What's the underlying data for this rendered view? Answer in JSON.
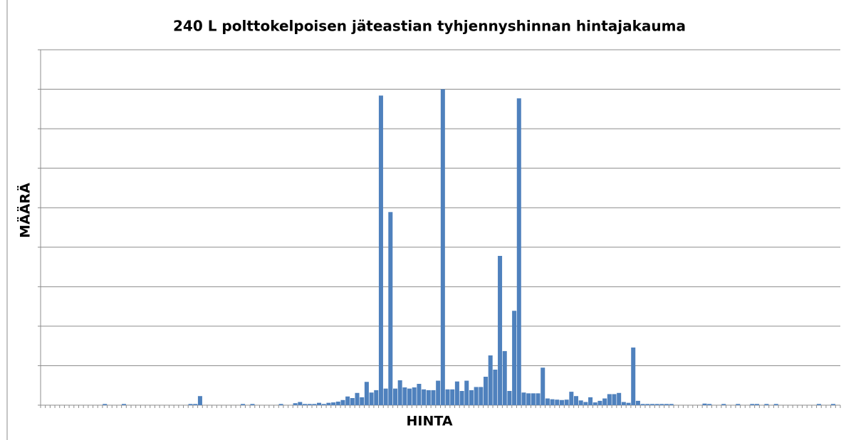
{
  "chart_data": {
    "type": "bar",
    "title": "240 L polttokelpoisen jäteastian tyhjennyshinnan hintajakauma",
    "x_label": "HINTA",
    "y_label": "MÄÄRÄ",
    "categories": [
      null,
      null,
      null,
      null,
      null,
      null,
      null,
      null,
      null,
      null,
      null,
      null,
      null,
      null,
      null,
      null,
      null,
      null,
      null,
      null,
      null,
      null,
      null,
      null,
      null,
      null,
      null,
      null,
      null,
      null,
      null,
      null,
      null,
      null,
      null,
      null,
      null,
      null,
      null,
      null,
      null,
      null,
      null,
      null,
      null,
      null,
      null,
      null,
      null,
      null,
      null,
      null,
      null,
      null,
      null,
      null,
      null,
      null,
      null,
      null,
      null,
      null,
      null,
      null,
      null,
      null,
      null,
      null,
      null,
      null,
      null,
      null,
      null,
      null,
      null,
      null,
      null,
      null,
      null,
      null,
      null,
      null,
      null,
      null,
      null,
      null,
      null,
      null,
      null,
      null,
      null,
      null,
      null,
      null,
      null,
      null,
      null,
      null,
      null,
      null,
      null,
      null,
      null,
      null,
      null,
      null,
      null,
      null,
      null,
      null,
      null,
      null,
      null,
      null,
      null,
      null,
      null,
      null,
      null,
      null,
      null,
      null,
      null,
      null,
      null,
      null,
      null,
      null,
      null,
      null,
      null,
      null,
      null,
      null,
      null,
      null,
      null,
      null,
      null,
      null,
      null,
      null,
      null,
      null,
      null,
      null,
      null,
      null,
      null,
      null,
      null,
      null,
      null,
      null,
      null,
      null,
      null,
      null,
      null,
      null,
      null,
      null,
      null,
      null,
      null,
      null,
      null,
      null
    ],
    "values": [
      0,
      0,
      0,
      0,
      0,
      0,
      0,
      0,
      0,
      0,
      0,
      0,
      0,
      0.3,
      0,
      0,
      0,
      0.3,
      0,
      0,
      0,
      0,
      0,
      0,
      0,
      0,
      0,
      0,
      0,
      0,
      0,
      0.3,
      0.3,
      2.3,
      0,
      0,
      0,
      0,
      0,
      0,
      0,
      0,
      0.3,
      0,
      0.3,
      0,
      0,
      0,
      0,
      0,
      0.3,
      0,
      0,
      0.5,
      0.8,
      0.3,
      0.3,
      0.3,
      0.6,
      0.3,
      0.6,
      0.7,
      0.9,
      1.3,
      2.2,
      1.8,
      3.1,
      2.0,
      5.9,
      3.2,
      3.8,
      78.4,
      4.2,
      48.9,
      4.2,
      6.3,
      4.5,
      4.2,
      4.5,
      5.4,
      4.0,
      3.8,
      3.8,
      6.2,
      80,
      4.0,
      4.0,
      6.0,
      3.6,
      6.2,
      3.8,
      4.6,
      4.6,
      7.2,
      12.6,
      9.0,
      37.8,
      13.7,
      3.6,
      23.9,
      77.7,
      3.2,
      3.0,
      3.0,
      3.0,
      9.5,
      1.7,
      1.5,
      1.4,
      1.3,
      1.4,
      3.4,
      2.3,
      1.2,
      0.8,
      2.0,
      0.7,
      1.1,
      1.7,
      2.8,
      2.8,
      3.1,
      0.8,
      0.6,
      14.6,
      1.1,
      0.3,
      0.3,
      0.3,
      0.3,
      0.3,
      0.3,
      0.3,
      0,
      0,
      0,
      0,
      0,
      0,
      0.4,
      0.3,
      0,
      0,
      0.3,
      0,
      0,
      0.3,
      0,
      0,
      0.3,
      0.3,
      0,
      0.3,
      0,
      0.3,
      0,
      0,
      0,
      0,
      0,
      0,
      0,
      0,
      0.3,
      0,
      0,
      0.3,
      0
    ],
    "color": "#4f81bd",
    "ylim": [
      0,
      90
    ],
    "yticks": [
      0,
      10,
      20,
      30,
      40,
      50,
      60,
      70,
      80,
      90
    ],
    "grid": true
  }
}
